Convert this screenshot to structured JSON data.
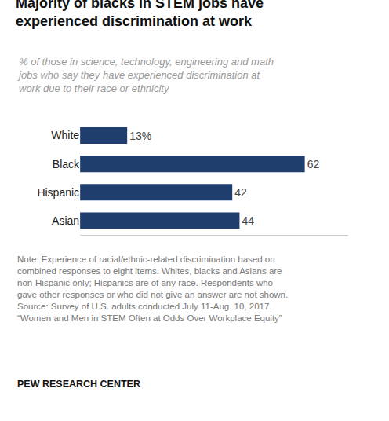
{
  "chart_data": {
    "type": "bar",
    "orientation": "horizontal",
    "title": "Majority of blacks in STEM jobs have\nexperienced discrimination at work",
    "subtitle": "% of those in science, technology, engineering and math\njobs who say they have experienced discrimination at\nwork due to their race or ethnicity",
    "categories": [
      "White",
      "Black",
      "Hispanic",
      "Asian"
    ],
    "values": [
      13,
      62,
      42,
      44
    ],
    "value_labels": [
      "13%",
      "62",
      "42",
      "44"
    ],
    "data_labels": true,
    "color": "#1f3e6e",
    "xlim": [
      0,
      74
    ],
    "tick_labels": "y",
    "grid": false,
    "annotations": [
      "Note: Experience of racial/ethnic-related discrimination based on\ncombined responses to eight items. Whites, blacks and Asians are\nnon-Hispanic only; Hispanics are of any race. Respondents who\ngave other responses or who did not give an answer are not shown.\nSource: Survey of U.S. adults conducted July 11-Aug. 10, 2017.\n“Women and Men in STEM Often at Odds Over Workplace Equity”",
      "PEW RESEARCH CENTER"
    ]
  }
}
